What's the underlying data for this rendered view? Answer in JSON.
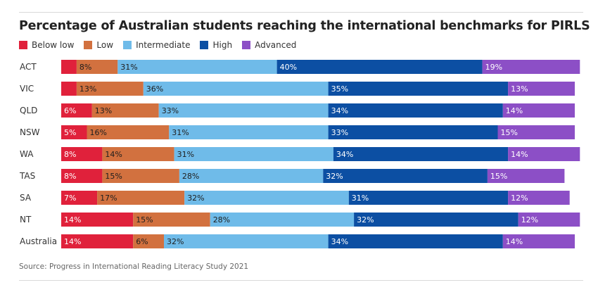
{
  "chart_data": {
    "type": "bar",
    "orientation": "horizontal",
    "stacked": true,
    "title": "Percentage of Australian students reaching the international benchmarks for PIRLS",
    "categories": [
      "ACT",
      "VIC",
      "QLD",
      "NSW",
      "WA",
      "TAS",
      "SA",
      "NT",
      "Australia"
    ],
    "series": [
      {
        "name": "Below low",
        "color": "#e0213b",
        "values": [
          null,
          null,
          6,
          5,
          8,
          8,
          7,
          14,
          14
        ],
        "labels": [
          "",
          "",
          "6%",
          "5%",
          "8%",
          "8%",
          "7%",
          "14%",
          "14%"
        ]
      },
      {
        "name": "Low",
        "color": "#d2713f",
        "values": [
          8,
          13,
          13,
          16,
          14,
          15,
          17,
          15,
          6
        ],
        "labels": [
          "8%",
          "13%",
          "13%",
          "16%",
          "14%",
          "15%",
          "17%",
          "15%",
          "6%"
        ]
      },
      {
        "name": "Intermediate",
        "color": "#6fbbe9",
        "values": [
          31,
          36,
          33,
          31,
          31,
          28,
          32,
          28,
          32
        ],
        "labels": [
          "31%",
          "36%",
          "33%",
          "31%",
          "31%",
          "28%",
          "32%",
          "28%",
          "32%"
        ]
      },
      {
        "name": "High",
        "color": "#0c4fa3",
        "values": [
          40,
          35,
          34,
          33,
          34,
          32,
          31,
          32,
          34
        ],
        "labels": [
          "40%",
          "35%",
          "34%",
          "33%",
          "34%",
          "32%",
          "31%",
          "32%",
          "34%"
        ]
      },
      {
        "name": "Advanced",
        "color": "#8c4fc6",
        "values": [
          19,
          13,
          14,
          15,
          14,
          15,
          12,
          12,
          14
        ],
        "labels": [
          "19%",
          "13%",
          "14%",
          "15%",
          "14%",
          "15%",
          "12%",
          "12%",
          "14%"
        ]
      }
    ],
    "unlabeled_below_low_estimate": [
      3,
      3
    ],
    "xlim": [
      0,
      100
    ],
    "source": "Source: Progress in International Reading Literacy Study 2021"
  }
}
